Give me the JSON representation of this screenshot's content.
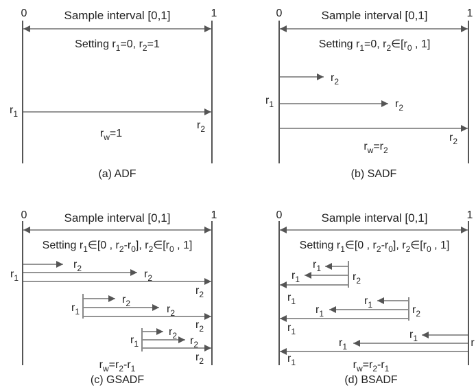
{
  "panels": {
    "a": {
      "zero": "0",
      "one": "1",
      "interval": "Sample interval [0,1]",
      "setting": [
        [
          "Setting r",
          ""
        ],
        [
          "1",
          "sub"
        ],
        [
          "=0, r",
          ""
        ],
        [
          "2",
          "sub"
        ],
        [
          "=1",
          ""
        ]
      ],
      "r1": [
        [
          "r",
          ""
        ],
        [
          "1",
          "sub"
        ]
      ],
      "r2": [
        [
          "r",
          ""
        ],
        [
          "2",
          "sub"
        ]
      ],
      "rw": [
        [
          "r",
          ""
        ],
        [
          "w",
          "sub"
        ],
        [
          "=1",
          ""
        ]
      ],
      "caption": "(a) ADF"
    },
    "b": {
      "zero": "0",
      "one": "1",
      "interval": "Sample interval [0,1]",
      "setting": [
        [
          "Setting r",
          ""
        ],
        [
          "1",
          "sub"
        ],
        [
          "=0, r",
          ""
        ],
        [
          "2",
          "sub"
        ],
        [
          "∈[r",
          ""
        ],
        [
          "0",
          "sub"
        ],
        [
          " , 1]",
          ""
        ]
      ],
      "r1": [
        [
          "r",
          ""
        ],
        [
          "1",
          "sub"
        ]
      ],
      "r2": [
        [
          "r",
          ""
        ],
        [
          "2",
          "sub"
        ]
      ],
      "rw": [
        [
          "r",
          ""
        ],
        [
          "w",
          "sub"
        ],
        [
          "=r",
          ""
        ],
        [
          "2",
          "sub"
        ]
      ],
      "caption": "(b) SADF"
    },
    "c": {
      "zero": "0",
      "one": "1",
      "interval": "Sample interval [0,1]",
      "setting": [
        [
          "Setting r",
          ""
        ],
        [
          "1",
          "sub"
        ],
        [
          "∈[0 , r",
          ""
        ],
        [
          "2",
          "sub"
        ],
        [
          "-r",
          ""
        ],
        [
          "0",
          "sub"
        ],
        [
          "], r",
          ""
        ],
        [
          "2",
          "sub"
        ],
        [
          "∈[r",
          ""
        ],
        [
          "0",
          "sub"
        ],
        [
          " , 1]",
          ""
        ]
      ],
      "r1": [
        [
          "r",
          ""
        ],
        [
          "1",
          "sub"
        ]
      ],
      "r2": [
        [
          "r",
          ""
        ],
        [
          "2",
          "sub"
        ]
      ],
      "rw": [
        [
          "r",
          ""
        ],
        [
          "w",
          "sub"
        ],
        [
          "=r",
          ""
        ],
        [
          "2",
          "sub"
        ],
        [
          "-r",
          ""
        ],
        [
          "1",
          "sub"
        ]
      ],
      "caption": "(c) GSADF"
    },
    "d": {
      "zero": "0",
      "one": "1",
      "interval": "Sample interval [0,1]",
      "setting": [
        [
          "Setting r",
          ""
        ],
        [
          "1",
          "sub"
        ],
        [
          "∈[0 , r",
          ""
        ],
        [
          "2",
          "sub"
        ],
        [
          "-r",
          ""
        ],
        [
          "0",
          "sub"
        ],
        [
          "], r",
          ""
        ],
        [
          "2",
          "sub"
        ],
        [
          "∈[r",
          ""
        ],
        [
          "0",
          "sub"
        ],
        [
          " , 1]",
          ""
        ]
      ],
      "r1": [
        [
          "r",
          ""
        ],
        [
          "1",
          "sub"
        ]
      ],
      "r2": [
        [
          "r",
          ""
        ],
        [
          "2",
          "sub"
        ]
      ],
      "r_edge": "r",
      "rw": [
        [
          "r",
          ""
        ],
        [
          "w",
          "sub"
        ],
        [
          "=r",
          ""
        ],
        [
          "2",
          "sub"
        ],
        [
          "-r",
          ""
        ],
        [
          "1",
          "sub"
        ]
      ],
      "caption": "(d) BSADF"
    }
  },
  "colors": {
    "line": "#555555",
    "text": "#222222",
    "background": "#ffffff"
  }
}
